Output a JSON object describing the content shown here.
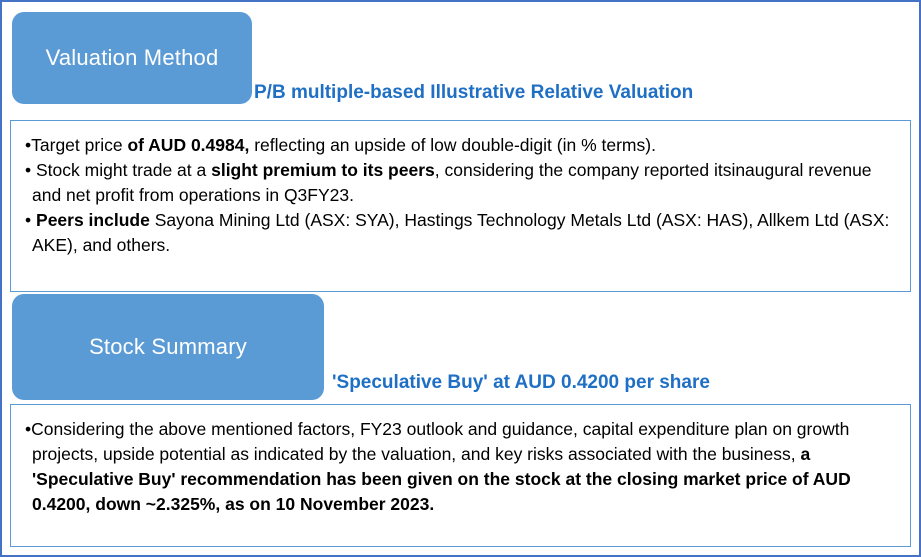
{
  "colors": {
    "frame_border": "#4472C4",
    "box_border": "#5B9BD5",
    "tab_background": "#5B9BD5",
    "tab_text": "#FFFFFF",
    "heading_text": "#1F6FC5",
    "body_text": "#000000"
  },
  "bullet_char": "•",
  "valuation": {
    "tab_label": "Valuation Method",
    "heading": "P/B multiple-based Illustrative Relative Valuation",
    "bullets": {
      "b1_pre": "Target price ",
      "b1_bold": "of AUD 0.4984,",
      "b1_post": " reflecting an upside of low double-digit (in % terms).",
      "b2_pre": " Stock might trade at a ",
      "b2_bold": "slight premium to its peers",
      "b2_post": ", considering the company reported itsinaugural revenue and net profit from operations in Q3FY23.",
      "b3_pre": " ",
      "b3_bold": "Peers include",
      "b3_post": " Sayona Mining Ltd (ASX: SYA), Hastings Technology Metals Ltd (ASX: HAS), Allkem Ltd (ASX: AKE), and others."
    }
  },
  "summary": {
    "tab_label": "Stock Summary",
    "heading": "'Speculative Buy' at AUD 0.4200 per share",
    "bullets": {
      "b1_pre": "Considering the above mentioned factors, FY23 outlook and guidance, capital expenditure plan on growth projects, upside potential as indicated by the valuation, and key risks associated with the business, ",
      "b1_bold": "a 'Speculative Buy' recommendation has been given on the stock at the closing market price of AUD 0.4200, down ~2.325%, as on 10 November 2023."
    }
  }
}
